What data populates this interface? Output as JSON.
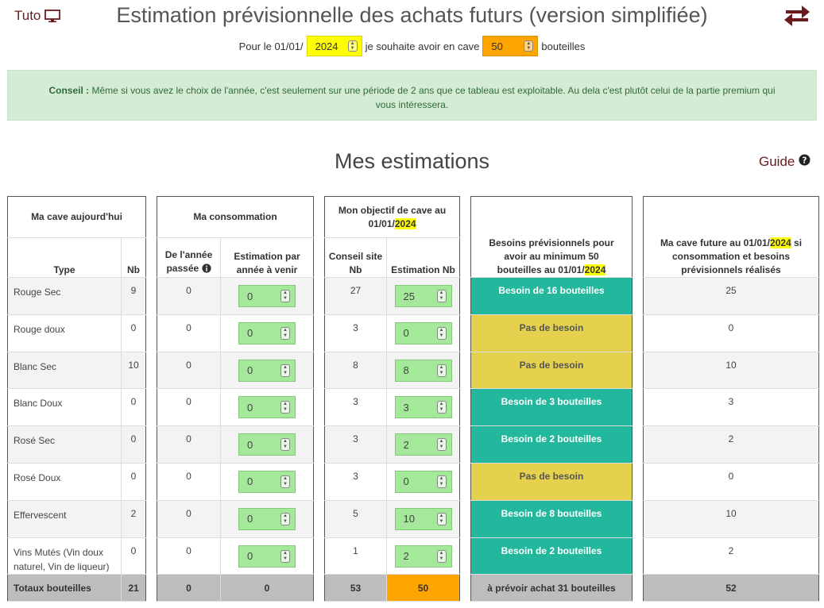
{
  "header": {
    "tuto_label": "Tuto",
    "title": "Estimation prévisionnelle des achats futurs (version simplifiée)",
    "icons": {
      "tuto": "monitor-icon",
      "swap": "swap-arrows-icon",
      "guide": "question-circle-icon"
    }
  },
  "target": {
    "prefix": "Pour le 01/01/",
    "year": "2024",
    "middle": "je souhaite avoir en cave",
    "bottles": "50",
    "suffix": "bouteilles"
  },
  "conseil": {
    "label": "Conseil :",
    "text": " Même si vous avez le choix de l'année, c'est seulement sur une période de 2 ans que ce tableau est exploitable. Au dela c'est plutôt celui de la partie premium qui vous intéressera."
  },
  "section": {
    "title": "Mes estimations",
    "guide_label": "Guide"
  },
  "cave": {
    "header": "Ma cave aujourd'hui",
    "col_type": "Type",
    "col_nb": "Nb",
    "rows": [
      {
        "type": "Rouge Sec",
        "nb": "9"
      },
      {
        "type": "Rouge doux",
        "nb": "0"
      },
      {
        "type": "Blanc Sec",
        "nb": "10"
      },
      {
        "type": "Blanc Doux",
        "nb": "0"
      },
      {
        "type": "Rosé Sec",
        "nb": "0"
      },
      {
        "type": "Rosé Doux",
        "nb": "0"
      },
      {
        "type": "Effervescent",
        "nb": "2"
      },
      {
        "type": "Vins Mutés (Vin doux naturel, Vin de liqueur)",
        "nb": "0"
      }
    ],
    "total_label": "Totaux bouteilles",
    "total": "21"
  },
  "conso": {
    "header": "Ma consommation",
    "col_past": "De l'année passée",
    "col_est": "Estimation par année à venir",
    "info_icon": "info-circle-icon",
    "rows": [
      {
        "past": "0",
        "est": "0"
      },
      {
        "past": "0",
        "est": "0"
      },
      {
        "past": "0",
        "est": "0"
      },
      {
        "past": "0",
        "est": "0"
      },
      {
        "past": "0",
        "est": "0"
      },
      {
        "past": "0",
        "est": "0"
      },
      {
        "past": "0",
        "est": "0"
      },
      {
        "past": "0",
        "est": "0"
      }
    ],
    "total_past": "0",
    "total_est": "0"
  },
  "objectif": {
    "header_prefix": "Mon objectif de cave au 01/01/",
    "header_year": "2024",
    "col_conseil": "Conseil site Nb",
    "col_est": "Estimation Nb",
    "rows": [
      {
        "conseil": "27",
        "est": "25"
      },
      {
        "conseil": "3",
        "est": "0"
      },
      {
        "conseil": "8",
        "est": "8"
      },
      {
        "conseil": "3",
        "est": "3"
      },
      {
        "conseil": "3",
        "est": "2"
      },
      {
        "conseil": "3",
        "est": "0"
      },
      {
        "conseil": "5",
        "est": "10"
      },
      {
        "conseil": "1",
        "est": "2"
      }
    ],
    "total_conseil": "53",
    "total_est": "50"
  },
  "besoins": {
    "header_prefix": "Besoins prévisionnels pour avoir au minimum 50 bouteilles au 01/01/",
    "header_year": "2024",
    "rows": [
      {
        "label": "Besoin de 16 bouteilles",
        "kind": "besoin"
      },
      {
        "label": "Pas de besoin",
        "kind": "pas"
      },
      {
        "label": "Pas de besoin",
        "kind": "pas"
      },
      {
        "label": "Besoin de 3 bouteilles",
        "kind": "besoin"
      },
      {
        "label": "Besoin de 2 bouteilles",
        "kind": "besoin"
      },
      {
        "label": "Pas de besoin",
        "kind": "pas"
      },
      {
        "label": "Besoin de 8 bouteilles",
        "kind": "besoin"
      },
      {
        "label": "Besoin de 2 bouteilles",
        "kind": "besoin"
      }
    ],
    "total": "à prévoir achat 31 bouteilles",
    "colors": {
      "besoin": "#23b89e",
      "pas": "#e5d14e"
    }
  },
  "future": {
    "header_prefix": "Ma cave future au 01/01/",
    "header_year": "2024",
    "header_suffix": " si consommation et besoins prévisionnels réalisés",
    "rows": [
      "25",
      "0",
      "10",
      "3",
      "2",
      "0",
      "10",
      "2"
    ],
    "total": "52"
  }
}
